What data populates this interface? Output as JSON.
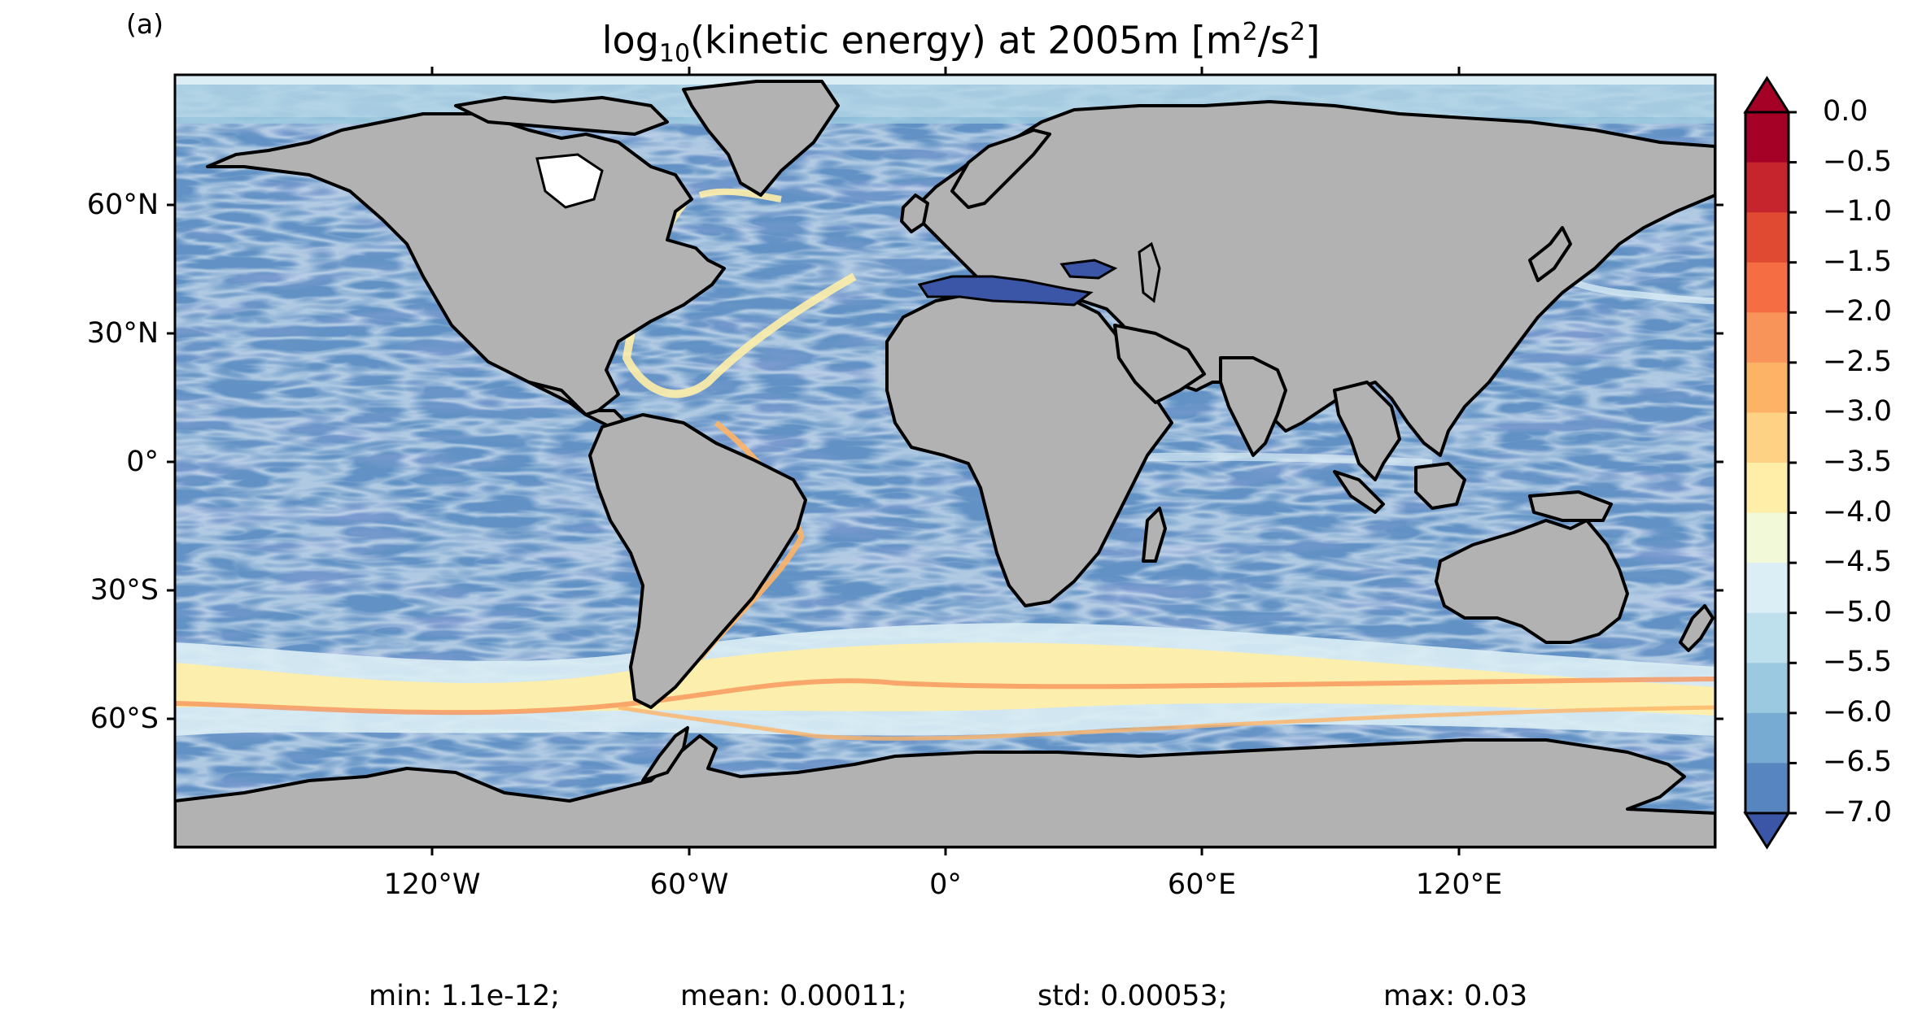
{
  "panel_label": "(a)",
  "title": {
    "prefix": "log",
    "base": "10",
    "middle": "(kinetic energy) at 2005m [m",
    "exp1": "2",
    "slash": "/s",
    "exp2": "2",
    "suffix": "]"
  },
  "axes": {
    "lat_ticks": [
      "60°N",
      "30°N",
      "0°",
      "30°S",
      "60°S"
    ],
    "lon_ticks": [
      "120°W",
      "60°W",
      "0°",
      "60°E",
      "120°E"
    ]
  },
  "colorbar": {
    "ticks": [
      "0.0",
      "−0.5",
      "−1.0",
      "−1.5",
      "−2.0",
      "−2.5",
      "−3.0",
      "−3.5",
      "−4.0",
      "−4.5",
      "−5.0",
      "−5.5",
      "−6.0",
      "−6.5",
      "−7.0"
    ],
    "colors": [
      "#a50026",
      "#c7252d",
      "#e04a33",
      "#f46d43",
      "#f8935a",
      "#fdb366",
      "#fed284",
      "#feeea8",
      "#f1f9d8",
      "#dbeef5",
      "#bee0ec",
      "#9bc9df",
      "#78abd1",
      "#5685bf",
      "#3b56a7"
    ],
    "extend": "both"
  },
  "stats": {
    "min": "min: 1.1e-12;",
    "mean": "mean: 0.00011;",
    "std": "std: 0.00053;",
    "max": "max: 0.03"
  },
  "map_colors": {
    "land": "#b2b2b2",
    "ocean_deep_blue": "#3b56a7",
    "ocean_mid_blue": "#78abd1",
    "ocean_light": "#dbeef5",
    "current_yellow": "#feeea8",
    "current_orange": "#f8935a"
  }
}
